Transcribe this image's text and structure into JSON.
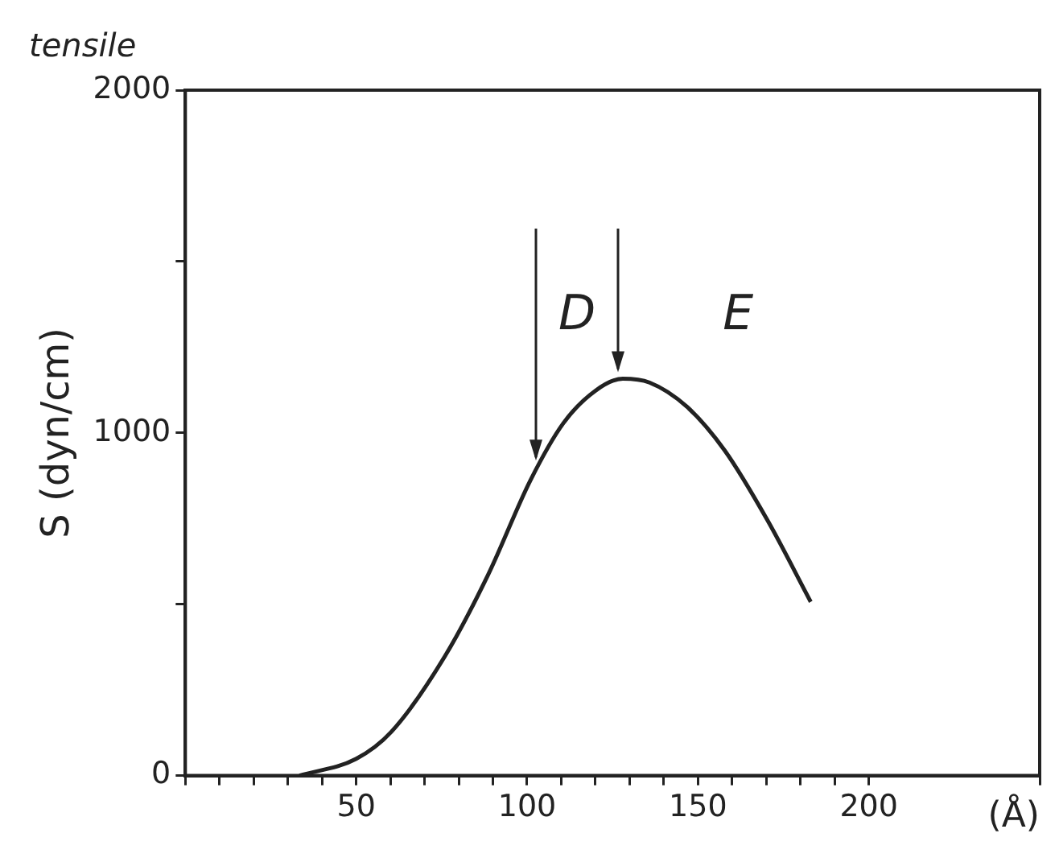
{
  "chart_data": {
    "type": "line",
    "title": "tensile",
    "ylabel": "S (dyn/cm)",
    "xlabel": "(Å)",
    "x": [
      33.4,
      50,
      60.3,
      76,
      88.6,
      101,
      110.6,
      120,
      128,
      135.8,
      146.8,
      157.8,
      170.4,
      183
    ],
    "series": [
      {
        "color": "#222222",
        "values": [
          0,
          49,
          128,
          349,
          586,
          862,
          1028,
          1123,
          1158,
          1147,
          1076,
          949,
          744,
          507
        ]
      }
    ],
    "xlim": [
      0,
      250
    ],
    "xticks": [
      {
        "value": 0,
        "label": null
      },
      {
        "value": 10,
        "label": null
      },
      {
        "value": 20,
        "label": null
      },
      {
        "value": 30,
        "label": null
      },
      {
        "value": 40,
        "label": null
      },
      50,
      {
        "value": 60,
        "label": null
      },
      {
        "value": 70,
        "label": null
      },
      {
        "value": 80,
        "label": null
      },
      {
        "value": 90,
        "label": null
      },
      100,
      {
        "value": 110,
        "label": null
      },
      {
        "value": 120,
        "label": null
      },
      {
        "value": 130,
        "label": null
      },
      {
        "value": 140,
        "label": null
      },
      150,
      {
        "value": 160,
        "label": null
      },
      {
        "value": 170,
        "label": null
      },
      {
        "value": 180,
        "label": null
      },
      {
        "value": 190,
        "label": null
      },
      200,
      {
        "value": 250,
        "label": null
      }
    ],
    "ylim": [
      0,
      2000
    ],
    "yticks": [
      0,
      {
        "value": 500,
        "label": null
      },
      1000,
      {
        "value": 1500,
        "label": null
      },
      2000
    ],
    "annotations": [
      "D",
      "E"
    ],
    "ref_lines": [
      {
        "axis": "x",
        "value": 102.8,
        "label": null
      },
      {
        "axis": "x",
        "value": 126.4,
        "label": null
      }
    ],
    "grid": false,
    "legend": false,
    "marker": "none",
    "line_style": "solid"
  }
}
